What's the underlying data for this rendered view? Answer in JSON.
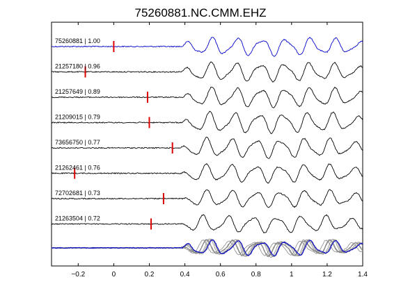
{
  "chart_data": {
    "type": "line",
    "title": "75260881.NC.CMM.EHZ",
    "xlabel": "",
    "ylabel": "",
    "xlim": [
      -0.35,
      1.4
    ],
    "x_ticks": [
      -0.2,
      0,
      0.2,
      0.4,
      0.6,
      0.8,
      1,
      1.2,
      1.4
    ],
    "x_tick_labels": [
      "−0.2",
      "0",
      "0.2",
      "0.4",
      "0.6",
      "0.8",
      "1",
      "1.2",
      "1.4"
    ],
    "grid": false,
    "traces": [
      {
        "label": "75260881 | 1.00",
        "pick_time": 0.0,
        "color": "#0000cc",
        "shift": 0.0,
        "amp": 1.0
      },
      {
        "label": "21257180 | 0.96",
        "pick_time": -0.16,
        "color": "#000000",
        "shift": 0.0,
        "amp": 1.05
      },
      {
        "label": "21257649 | 0.89",
        "pick_time": 0.19,
        "color": "#000000",
        "shift": 0.01,
        "amp": 1.1
      },
      {
        "label": "21209015 | 0.79",
        "pick_time": 0.2,
        "color": "#000000",
        "shift": 0.005,
        "amp": 1.15
      },
      {
        "label": "73656750 | 0.77",
        "pick_time": 0.33,
        "color": "#000000",
        "shift": -0.005,
        "amp": 1.1
      },
      {
        "label": "21262461 | 0.76",
        "pick_time": -0.22,
        "color": "#000000",
        "shift": 0.0,
        "amp": 1.0
      },
      {
        "label": "72702681 | 0.73",
        "pick_time": 0.28,
        "color": "#000000",
        "shift": 0.01,
        "amp": 0.95
      },
      {
        "label": "21263504 | 0.72",
        "pick_time": 0.21,
        "color": "#000000",
        "shift": -0.005,
        "amp": 0.95
      }
    ],
    "stack": {
      "trace_color": "#888888",
      "reference_color": "#0000cc"
    },
    "pick_color": "#dd0000"
  }
}
